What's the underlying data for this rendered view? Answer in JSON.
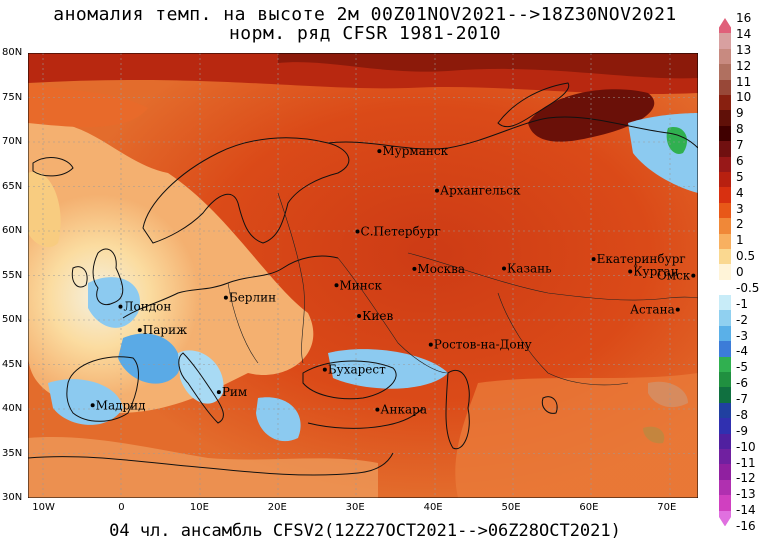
{
  "title_line1": "аномалия темп. на высоте 2м 00Z01NOV2021-->18Z30NOV2021",
  "title_line2": "норм. ряд CFSR 1981-2010",
  "footer": "04 чл. ансамбль CFSV2(12Z27OCT2021-->06Z28OCT2021)",
  "lat_labels": [
    "80N",
    "75N",
    "70N",
    "65N",
    "60N",
    "55N",
    "50N",
    "45N",
    "40N",
    "35N",
    "30N"
  ],
  "lon_labels": [
    "10W",
    "0",
    "10E",
    "20E",
    "30E",
    "40E",
    "50E",
    "60E",
    "70E"
  ],
  "colorbar": {
    "labels": [
      "16",
      "14",
      "13",
      "12",
      "11",
      "10",
      "9",
      "8",
      "7",
      "6",
      "5",
      "4",
      "3",
      "2",
      "1",
      "0.5",
      "0",
      "-0.5",
      "-1",
      "-2",
      "-3",
      "-4",
      "-5",
      "-6",
      "-7",
      "-8",
      "-9",
      "-10",
      "-11",
      "-12",
      "-13",
      "-14",
      "-16"
    ],
    "colors": [
      "#e0607a",
      "#d8a0a0",
      "#c88a80",
      "#b07060",
      "#984838",
      "#882010",
      "#601008",
      "#400000",
      "#701010",
      "#981818",
      "#b82010",
      "#d83010",
      "#e85818",
      "#f08838",
      "#f8b060",
      "#fad890",
      "#fff4d8",
      "#ffffff",
      "#c8ecf8",
      "#90d0f0",
      "#5ab0e8",
      "#3c7cd8",
      "#30b050",
      "#209040",
      "#107040",
      "#2040a0",
      "#3030b0",
      "#5020a0",
      "#7020a0",
      "#9020a0",
      "#b030b0",
      "#d040c0",
      "#e070e0"
    ]
  },
  "cities": [
    {
      "name": "Мурманск",
      "lon": 33.1,
      "lat": 68.97
    },
    {
      "name": "Архангельск",
      "lon": 40.5,
      "lat": 64.54
    },
    {
      "name": "С.Петербург",
      "lon": 30.3,
      "lat": 59.94
    },
    {
      "name": "Москва",
      "lon": 37.6,
      "lat": 55.75
    },
    {
      "name": "Казань",
      "lon": 49.1,
      "lat": 55.79
    },
    {
      "name": "Екатеринбург",
      "lon": 60.6,
      "lat": 56.84
    },
    {
      "name": "Курган",
      "lon": 65.3,
      "lat": 55.45
    },
    {
      "name": "Омск",
      "lon": 73.4,
      "lat": 54.99
    },
    {
      "name": "Астана",
      "lon": 71.4,
      "lat": 51.17
    },
    {
      "name": "Минск",
      "lon": 27.6,
      "lat": 53.9
    },
    {
      "name": "Берлин",
      "lon": 13.4,
      "lat": 52.52
    },
    {
      "name": "Лондон",
      "lon": -0.13,
      "lat": 51.5
    },
    {
      "name": "Париж",
      "lon": 2.35,
      "lat": 48.86
    },
    {
      "name": "Киев",
      "lon": 30.5,
      "lat": 50.45
    },
    {
      "name": "Ростов-на-Дону",
      "lon": 39.7,
      "lat": 47.24
    },
    {
      "name": "Бухарест",
      "lon": 26.1,
      "lat": 44.43
    },
    {
      "name": "Рим",
      "lon": 12.5,
      "lat": 41.9
    },
    {
      "name": "Мадрид",
      "lon": -3.7,
      "lat": 40.42
    },
    {
      "name": "Анкара",
      "lon": 32.85,
      "lat": 39.93
    }
  ]
}
